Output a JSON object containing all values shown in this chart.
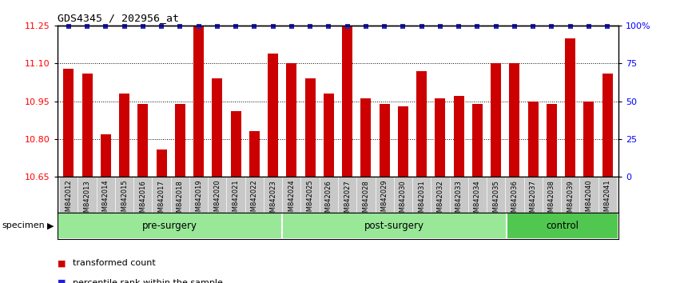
{
  "title": "GDS4345 / 202956_at",
  "categories": [
    "GSM842012",
    "GSM842013",
    "GSM842014",
    "GSM842015",
    "GSM842016",
    "GSM842017",
    "GSM842018",
    "GSM842019",
    "GSM842020",
    "GSM842021",
    "GSM842022",
    "GSM842023",
    "GSM842024",
    "GSM842025",
    "GSM842026",
    "GSM842027",
    "GSM842028",
    "GSM842029",
    "GSM842030",
    "GSM842031",
    "GSM842032",
    "GSM842033",
    "GSM842034",
    "GSM842035",
    "GSM842036",
    "GSM842037",
    "GSM842038",
    "GSM842039",
    "GSM842040",
    "GSM842041"
  ],
  "bar_values": [
    11.08,
    11.06,
    10.82,
    10.98,
    10.94,
    10.76,
    10.94,
    11.25,
    11.04,
    10.91,
    10.83,
    11.14,
    11.1,
    11.04,
    10.98,
    11.25,
    10.96,
    10.94,
    10.93,
    11.07,
    10.96,
    10.97,
    10.94,
    11.1,
    11.1,
    10.95,
    10.94,
    11.2,
    10.95,
    11.06
  ],
  "groups": [
    {
      "label": "pre-surgery",
      "start": 0,
      "end": 12,
      "color": "#98e898"
    },
    {
      "label": "post-surgery",
      "start": 12,
      "end": 24,
      "color": "#98e898"
    },
    {
      "label": "control",
      "start": 24,
      "end": 30,
      "color": "#50c850"
    }
  ],
  "ylim_left": [
    10.65,
    11.25
  ],
  "ylim_right": [
    0,
    100
  ],
  "yticks_left": [
    10.65,
    10.8,
    10.95,
    11.1,
    11.25
  ],
  "yticks_right": [
    0,
    25,
    50,
    75,
    100
  ],
  "ytick_labels_right": [
    "0",
    "25",
    "50",
    "75",
    "100%"
  ],
  "grid_lines": [
    10.8,
    10.95,
    11.1
  ],
  "bar_color": "#cc0000",
  "dot_color": "#2222cc",
  "tick_label_area_color": "#c8c8c8",
  "legend_items": [
    {
      "label": "transformed count",
      "color": "#cc0000"
    },
    {
      "label": "percentile rank within the sample",
      "color": "#2222cc"
    }
  ]
}
